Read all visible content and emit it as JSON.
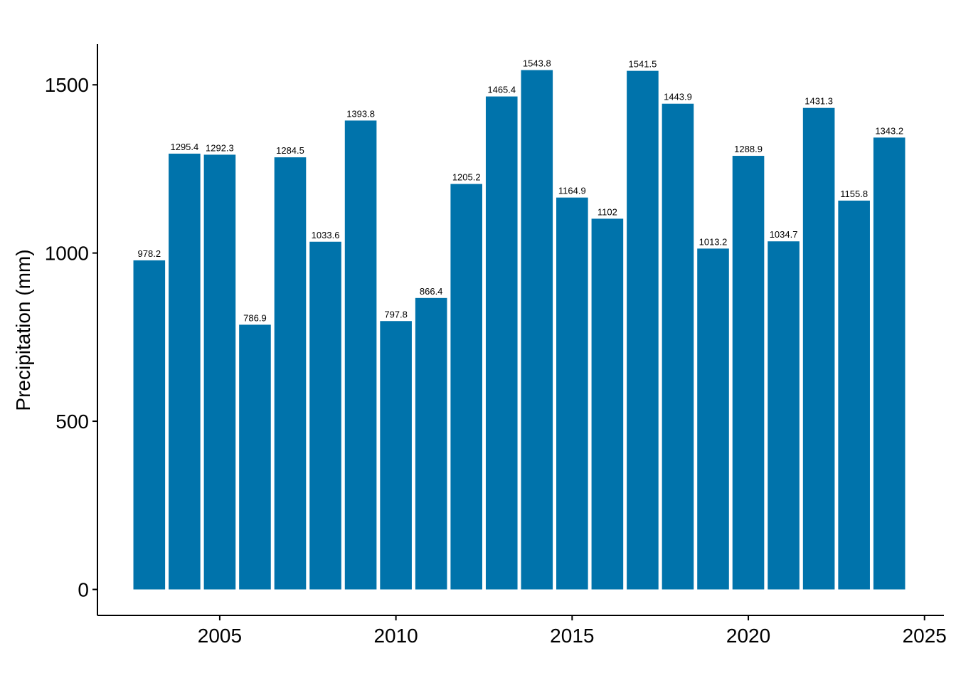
{
  "chart_data": {
    "type": "bar",
    "title": "",
    "xlabel": "",
    "ylabel": "Precipitation (mm)",
    "x": [
      2003,
      2004,
      2005,
      2006,
      2007,
      2008,
      2009,
      2010,
      2011,
      2012,
      2013,
      2014,
      2015,
      2016,
      2017,
      2018,
      2019,
      2020,
      2021,
      2022,
      2023,
      2024
    ],
    "values": [
      978.2,
      1295.4,
      1292.3,
      786.9,
      1284.5,
      1033.6,
      1393.8,
      797.8,
      866.4,
      1205.2,
      1465.4,
      1543.8,
      1164.9,
      1102,
      1541.5,
      1443.9,
      1013.2,
      1288.9,
      1034.7,
      1431.3,
      1155.8,
      1343.2
    ],
    "data_labels": [
      "978.2",
      "1295.4",
      "1292.3",
      "786.9",
      "1284.5",
      "1033.6",
      "1393.8",
      "797.8",
      "866.4",
      "1205.2",
      "1465.4",
      "1543.8",
      "1164.9",
      "1102",
      "1541.5",
      "1443.9",
      "1013.2",
      "1288.9",
      "1034.7",
      "1431.3",
      "1155.8",
      "1343.2"
    ],
    "xlim": [
      2001.53,
      2025.55
    ],
    "ylim": [
      -77.2,
      1621
    ],
    "xticks": [
      2005,
      2010,
      2015,
      2020,
      2025
    ],
    "xtick_labels": [
      "2005",
      "2010",
      "2015",
      "2020",
      "2025"
    ],
    "yticks": [
      0,
      500,
      1000,
      1500
    ],
    "ytick_labels": [
      "0",
      "500",
      "1000",
      "1500"
    ],
    "bar_color": "#0073AB",
    "grid": false,
    "legend": "none"
  }
}
